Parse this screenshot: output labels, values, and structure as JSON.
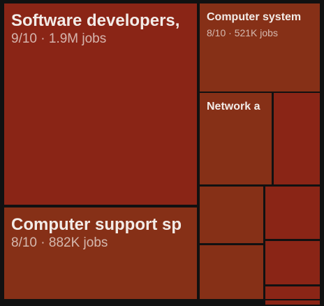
{
  "chart_data": {
    "type": "treemap",
    "score_scale_max": 10,
    "nodes": [
      {
        "label": "Software developers,",
        "score": 9,
        "score_text": "9/10",
        "jobs": 1900000,
        "jobs_text": "1.9M jobs",
        "color": "#8a2516"
      },
      {
        "label": "Computer support sp",
        "score": 8,
        "score_text": "8/10",
        "jobs": 882000,
        "jobs_text": "882K jobs",
        "color": "#863017"
      },
      {
        "label": "Computer system",
        "score": 8,
        "score_text": "8/10",
        "jobs": 521000,
        "jobs_text": "521K jobs",
        "color": "#863017"
      },
      {
        "label": "Network a",
        "color": "#863017"
      },
      {
        "label": "",
        "color": "#8a2516"
      },
      {
        "label": "",
        "color": "#863017"
      },
      {
        "label": "",
        "color": "#8a2516"
      },
      {
        "label": "",
        "color": "#863017"
      },
      {
        "label": "",
        "color": "#8a2516"
      },
      {
        "label": "",
        "color": "#8a2516"
      },
      {
        "label": "",
        "color": "#8a2516"
      }
    ]
  }
}
